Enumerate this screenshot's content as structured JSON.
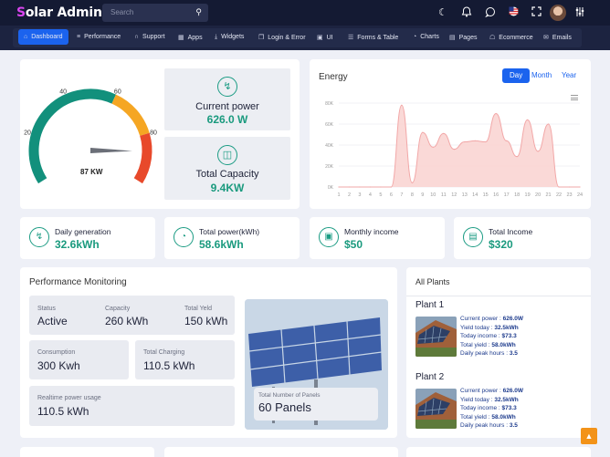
{
  "app": {
    "logo_letter": "S",
    "logo_text": "olar Admin"
  },
  "search": {
    "placeholder": "Search"
  },
  "nav": {
    "items": [
      {
        "label": "Dashboard",
        "icon": "home-icon"
      },
      {
        "label": "Performance",
        "icon": "list-icon"
      },
      {
        "label": "Support",
        "icon": "headset-icon"
      },
      {
        "label": "Apps",
        "icon": "grid-icon"
      },
      {
        "label": "Widgets",
        "icon": "download-icon"
      },
      {
        "label": "Login & Error",
        "icon": "doc-icon"
      },
      {
        "label": "UI",
        "icon": "box-icon"
      },
      {
        "label": "Forms & Table",
        "icon": "forms-icon"
      },
      {
        "label": "Charts",
        "icon": "chart-icon"
      },
      {
        "label": "Pages",
        "icon": "page-icon"
      },
      {
        "label": "Ecommerce",
        "icon": "cart-icon"
      },
      {
        "label": "Emails",
        "icon": "mail-icon"
      }
    ]
  },
  "gauge": {
    "value": 87,
    "max": 100,
    "label": "87 KW",
    "ticks": [
      "20",
      "40",
      "60",
      "80"
    ]
  },
  "current_power": {
    "title": "Current power",
    "value": "626.0 W"
  },
  "total_capacity": {
    "title": "Total Capacity",
    "value": "9.4KW"
  },
  "energy": {
    "title": "Energy",
    "tabs": [
      "Day",
      "Month",
      "Year"
    ],
    "active_tab": "Day"
  },
  "chart_data": {
    "type": "area",
    "title": "Energy",
    "xlabel": "",
    "ylabel": "",
    "x": [
      1,
      2,
      3,
      4,
      5,
      6,
      7,
      8,
      9,
      10,
      11,
      12,
      13,
      14,
      15,
      16,
      17,
      18,
      19,
      20,
      21,
      22,
      23,
      24
    ],
    "y_ticks": [
      "0K",
      "20K",
      "40K",
      "60K",
      "80K"
    ],
    "ylim": [
      0,
      80000
    ],
    "series": [
      {
        "values": [
          0,
          0,
          0,
          0,
          0,
          0,
          78000,
          4000,
          52000,
          38000,
          51000,
          36000,
          43000,
          44000,
          43000,
          70000,
          44000,
          29000,
          64000,
          34000,
          60000,
          0,
          0,
          0
        ]
      }
    ],
    "grid": true,
    "color": "#f2a7a7"
  },
  "mini_stats": [
    {
      "title": "Daily generation",
      "value": "32.6kWh",
      "icon": "bolt-icon"
    },
    {
      "title": "Total power(kWh)",
      "value": "58.6kWh",
      "icon": "pie-icon"
    },
    {
      "title": "Monthly income",
      "value": "$50",
      "icon": "money-icon"
    },
    {
      "title": "Total Income",
      "value": "$320",
      "icon": "wallet-icon"
    }
  ],
  "performance": {
    "title": "Performance Monitoring",
    "status": {
      "label": "Status",
      "value": "Active"
    },
    "capacity": {
      "label": "Capacity",
      "value": "260 kWh"
    },
    "total_yield": {
      "label": "Total Yeld",
      "value": "150 kWh"
    },
    "consumption": {
      "label": "Consumption",
      "value": "300 Kwh"
    },
    "total_charging": {
      "label": "Total Charging",
      "value": "110.5 kWh"
    },
    "realtime": {
      "label": "Realtime power usage",
      "value": "110.5 kWh"
    },
    "panels": {
      "label": "Total Number of Panels",
      "value": "60 Panels"
    }
  },
  "plants": {
    "title": "All Plants",
    "list": [
      {
        "name": "Plant 1",
        "lines": [
          {
            "k": "Current power : ",
            "v": "626.0W"
          },
          {
            "k": "Yield today : ",
            "v": "32.5kWh"
          },
          {
            "k": "Today income : ",
            "v": "$73.3"
          },
          {
            "k": "Total yield : ",
            "v": "58.0kWh"
          },
          {
            "k": "Daily peak hours : ",
            "v": "3.5"
          }
        ]
      },
      {
        "name": "Plant 2",
        "lines": [
          {
            "k": "Current power : ",
            "v": "626.0W"
          },
          {
            "k": "Yield today : ",
            "v": "32.5kWh"
          },
          {
            "k": "Today income : ",
            "v": "$73.3"
          },
          {
            "k": "Total yield : ",
            "v": "58.0kWh"
          },
          {
            "k": "Daily peak hours : ",
            "v": "3.5"
          }
        ]
      }
    ]
  }
}
